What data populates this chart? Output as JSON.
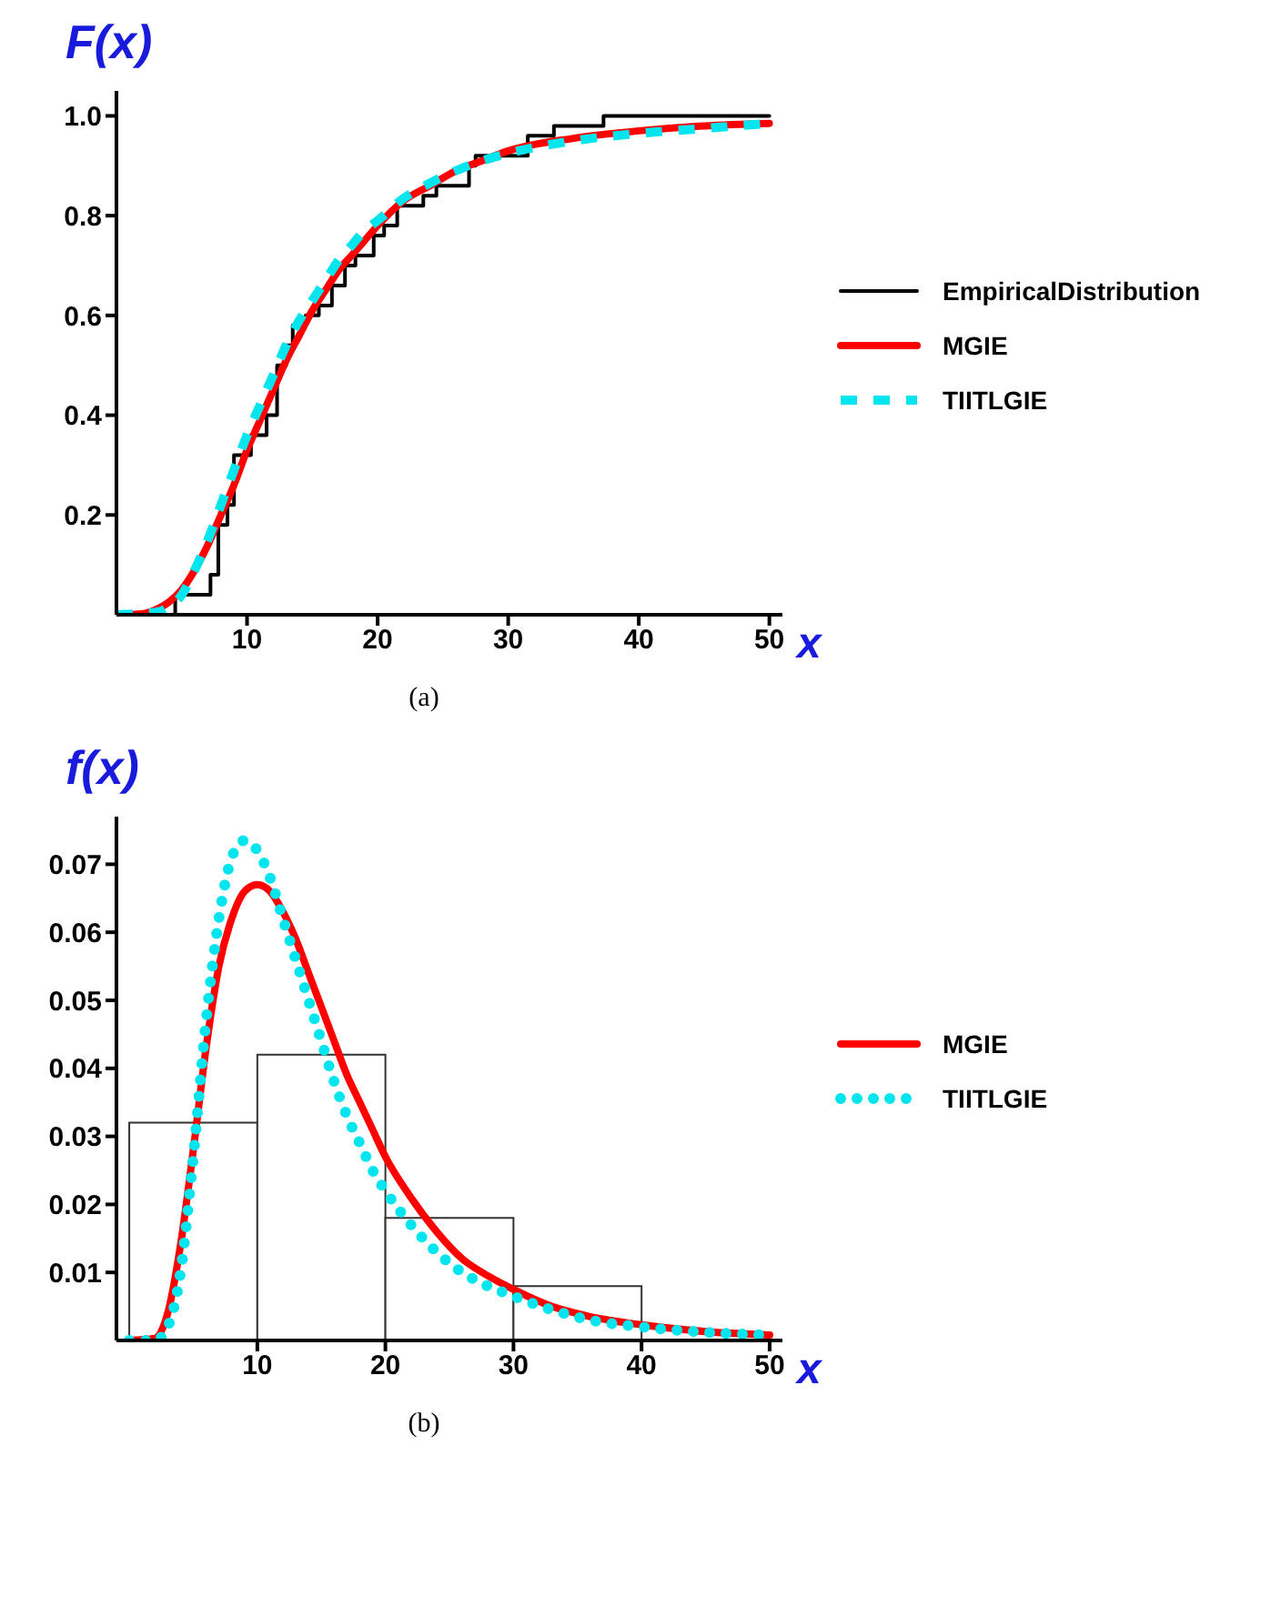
{
  "chart_data": [
    {
      "type": "line",
      "xlabel": "x",
      "ylabel": "F(x)",
      "annotations": [
        "(a)"
      ],
      "xlim": [
        0,
        51
      ],
      "ylim": [
        0,
        1.05
      ],
      "xticks": [
        10,
        20,
        30,
        40,
        50
      ],
      "yticks": [
        0.2,
        0.4,
        0.6,
        0.8,
        {
          "value": 1,
          "label": "1.0"
        }
      ],
      "legend": "right",
      "series": [
        {
          "name": "EmpiricalDistribution",
          "type": "step",
          "color": "#000000",
          "line_style": "solid",
          "x": [
            0,
            4.5,
            7.2,
            7.8,
            8.5,
            9,
            10.3,
            11.5,
            12.3,
            13,
            13.5,
            14.5,
            15.5,
            16.5,
            17.5,
            18.3,
            19.7,
            20.5,
            21.5,
            23.5,
            24.5,
            27,
            27.5,
            31.5,
            33.5,
            37.3,
            50
          ],
          "values": [
            0,
            0.04,
            0.08,
            0.18,
            0.22,
            0.32,
            0.36,
            0.4,
            0.5,
            0.54,
            0.58,
            0.6,
            0.62,
            0.66,
            0.7,
            0.72,
            0.76,
            0.78,
            0.82,
            0.84,
            0.86,
            0.9,
            0.92,
            0.96,
            0.98,
            1,
            1
          ]
        },
        {
          "name": "MGIE",
          "type": "line",
          "color": "#ff0000",
          "line_style": "solid",
          "x": [
            0,
            2,
            3,
            4,
            5,
            6,
            7,
            8,
            9,
            10,
            11,
            12,
            13,
            14,
            15,
            16,
            17,
            18,
            19,
            20,
            22,
            24,
            26,
            28,
            30,
            35,
            40,
            45,
            50
          ],
          "values": [
            0,
            0.002,
            0.01,
            0.025,
            0.05,
            0.09,
            0.14,
            0.2,
            0.26,
            0.33,
            0.39,
            0.45,
            0.51,
            0.56,
            0.61,
            0.65,
            0.69,
            0.72,
            0.75,
            0.78,
            0.83,
            0.86,
            0.89,
            0.91,
            0.93,
            0.955,
            0.97,
            0.98,
            0.985
          ]
        },
        {
          "name": "TIITLGIE",
          "type": "line",
          "color": "#00e5ee",
          "line_style": "dashed",
          "x": [
            0,
            3,
            4,
            5,
            6,
            7,
            8,
            9,
            10,
            11,
            12,
            13,
            14,
            15,
            16,
            17,
            18,
            19,
            20,
            22,
            24,
            26,
            28,
            30,
            35,
            40,
            45,
            50
          ],
          "values": [
            0,
            0.005,
            0.015,
            0.04,
            0.09,
            0.15,
            0.22,
            0.29,
            0.36,
            0.42,
            0.48,
            0.54,
            0.59,
            0.63,
            0.67,
            0.71,
            0.74,
            0.77,
            0.79,
            0.835,
            0.865,
            0.89,
            0.91,
            0.925,
            0.95,
            0.965,
            0.975,
            0.985
          ]
        }
      ]
    },
    {
      "type": "histogram",
      "xlabel": "x",
      "ylabel": "f(x)",
      "annotations": [
        "(b)"
      ],
      "xlim": [
        -1,
        51
      ],
      "ylim": [
        0,
        0.077
      ],
      "xticks": [
        10,
        20,
        30,
        40,
        50
      ],
      "yticks": [
        0.01,
        0.02,
        0.03,
        0.04,
        0.05,
        0.06,
        0.07
      ],
      "legend": "right",
      "color": "#ffffff",
      "bins": [
        0,
        10,
        20,
        30,
        40
      ],
      "values": [
        0.032,
        0.042,
        0.018,
        0.008
      ],
      "series": [
        {
          "name": "MGIE",
          "type": "line",
          "color": "#ff0000",
          "line_style": "solid",
          "x": [
            0,
            2,
            3,
            4,
            5,
            6,
            7,
            8,
            9,
            10,
            11,
            12,
            13,
            14,
            15,
            16,
            17,
            18,
            19,
            20,
            22,
            24,
            26,
            28,
            30,
            33,
            36,
            40,
            45,
            50
          ],
          "values": [
            0,
            0.0003,
            0.004,
            0.014,
            0.028,
            0.043,
            0.055,
            0.062,
            0.066,
            0.067,
            0.066,
            0.063,
            0.059,
            0.054,
            0.049,
            0.044,
            0.039,
            0.035,
            0.031,
            0.027,
            0.021,
            0.016,
            0.012,
            0.0095,
            0.0075,
            0.005,
            0.0035,
            0.0023,
            0.0013,
            0.0008
          ]
        },
        {
          "name": "TIITLGIE",
          "type": "line",
          "color": "#00e5ee",
          "line_style": "dotted",
          "x": [
            0,
            2,
            3,
            4,
            5,
            6,
            7,
            8,
            9,
            10,
            11,
            12,
            13,
            14,
            15,
            16,
            17,
            18,
            19,
            20,
            22,
            24,
            26,
            28,
            30,
            33,
            36,
            40,
            45,
            50
          ],
          "values": [
            0,
            0,
            0.002,
            0.01,
            0.027,
            0.047,
            0.062,
            0.071,
            0.0735,
            0.072,
            0.068,
            0.062,
            0.056,
            0.05,
            0.044,
            0.038,
            0.033,
            0.029,
            0.025,
            0.022,
            0.017,
            0.013,
            0.01,
            0.008,
            0.0065,
            0.0045,
            0.003,
            0.002,
            0.0012,
            0.0008
          ]
        }
      ]
    }
  ]
}
